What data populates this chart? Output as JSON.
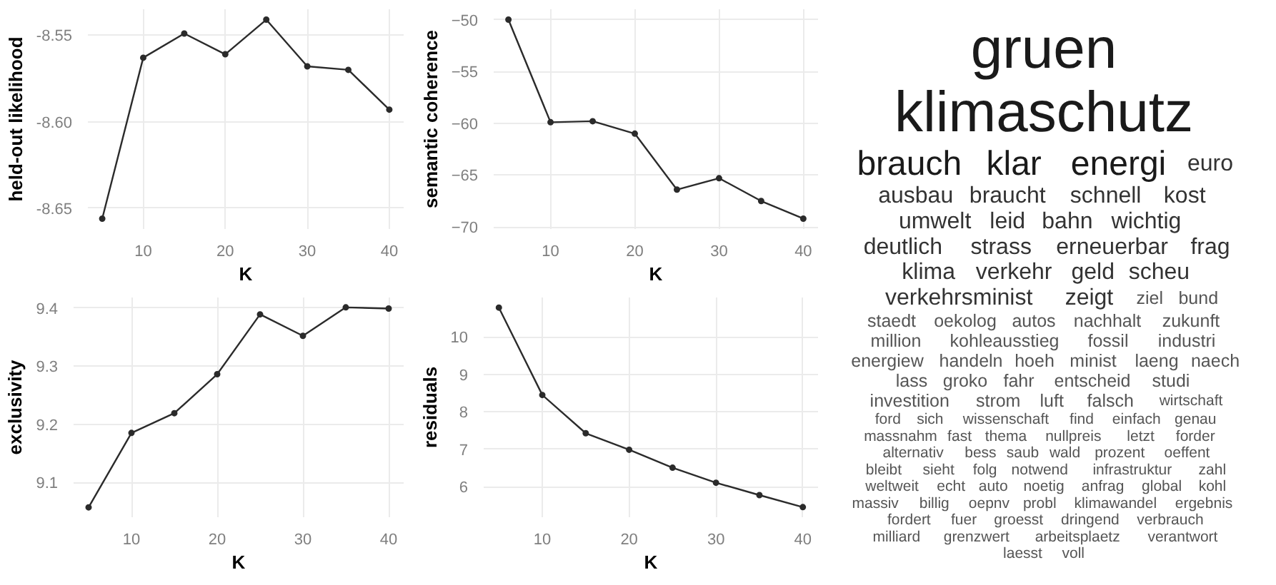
{
  "chart_data": [
    {
      "type": "line",
      "xlabel": "K",
      "ylabel": "held-out likelihood",
      "x": [
        5,
        10,
        15,
        20,
        25,
        30,
        35,
        40
      ],
      "series": [
        {
          "color": "#2b2b2b",
          "values": [
            -8.656,
            -8.563,
            -8.549,
            -8.561,
            -8.541,
            -8.568,
            -8.57,
            -8.593
          ]
        }
      ],
      "xlim": [
        3.25,
        41.75
      ],
      "ylim": [
        -8.662,
        -8.535
      ],
      "xticks": [
        10,
        20,
        30,
        40
      ],
      "yticks": [
        {
          "value": -8.65,
          "label": "-8.65"
        },
        {
          "value": -8.6,
          "label": "-8.60"
        },
        {
          "value": -8.55,
          "label": "-8.55"
        }
      ],
      "grid": true,
      "marker": "circle"
    },
    {
      "type": "line",
      "xlabel": "K",
      "ylabel": "semantic coherence",
      "x": [
        5,
        10,
        15,
        20,
        25,
        30,
        35,
        40
      ],
      "series": [
        {
          "color": "#2b2b2b",
          "values": [
            -50.0,
            -59.9,
            -59.8,
            -61.0,
            -66.4,
            -65.3,
            -67.5,
            -69.2
          ]
        }
      ],
      "xlim": [
        3.25,
        41.75
      ],
      "ylim": [
        -70.2,
        -49.0
      ],
      "xticks": [
        10,
        20,
        30,
        40
      ],
      "yticks": [
        -70,
        -65,
        -60,
        -55,
        -50
      ],
      "grid": true,
      "marker": "circle"
    },
    {
      "type": "line",
      "xlabel": "K",
      "ylabel": "exclusivity",
      "x": [
        5,
        10,
        15,
        20,
        25,
        30,
        35,
        40
      ],
      "series": [
        {
          "color": "#2b2b2b",
          "values": [
            9.057,
            9.185,
            9.219,
            9.286,
            9.389,
            9.352,
            9.401,
            9.399
          ]
        }
      ],
      "xlim": [
        3.25,
        41.75
      ],
      "ylim": [
        9.04,
        9.418
      ],
      "xticks": [
        10,
        20,
        30,
        40
      ],
      "yticks": [
        9.1,
        9.2,
        9.3,
        9.4
      ],
      "grid": true,
      "marker": "circle"
    },
    {
      "type": "line",
      "xlabel": "K",
      "ylabel": "residuals",
      "x": [
        5,
        10,
        15,
        20,
        25,
        30,
        35,
        40
      ],
      "series": [
        {
          "color": "#2b2b2b",
          "values": [
            10.78,
            8.45,
            7.43,
            6.99,
            6.51,
            6.11,
            5.78,
            5.46
          ]
        }
      ],
      "xlim": [
        3.25,
        41.75
      ],
      "ylim": [
        5.19,
        11.05
      ],
      "xticks": [
        10,
        20,
        30,
        40
      ],
      "yticks": [
        6,
        7,
        8,
        9,
        10
      ],
      "grid": true,
      "marker": "circle"
    },
    {
      "type": "other",
      "annotations": [
        "gruen",
        "klimaschutz",
        "brauch",
        "klar",
        "energi",
        "euro",
        "ausbau",
        "braucht",
        "schnell",
        "kost",
        "umwelt",
        "leid",
        "bahn",
        "wichtig",
        "deutlich",
        "strass",
        "erneuerbar",
        "frag",
        "klima",
        "verkehr",
        "geld",
        "scheu",
        "verkehrsminist",
        "zeigt",
        "ziel",
        "bund",
        "staedt",
        "oekolog",
        "autos",
        "nachhalt",
        "zukunft",
        "million",
        "kohleausstieg",
        "fossil",
        "industri",
        "energiew",
        "handeln",
        "hoeh",
        "minist",
        "laeng",
        "naech",
        "lass",
        "groko",
        "fahr",
        "entscheid",
        "studi",
        "investition",
        "strom",
        "luft",
        "falsch",
        "wirtschaft",
        "ford",
        "sich",
        "wissenschaft",
        "find",
        "einfach",
        "genau",
        "massnahm",
        "fast",
        "thema",
        "nullpreis",
        "letzt",
        "forder",
        "alternativ",
        "bess",
        "saub",
        "wald",
        "prozent",
        "oeffent",
        "bleibt",
        "sieht",
        "folg",
        "notwend",
        "infrastruktur",
        "zahl",
        "weltweit",
        "echt",
        "auto",
        "noetig",
        "anfrag",
        "global",
        "kohl",
        "massiv",
        "billig",
        "oepnv",
        "probl",
        "klimawandel",
        "ergebnis",
        "fordert",
        "fuer",
        "groesst",
        "dringend",
        "verbrauch",
        "milliard",
        "grenzwert",
        "arbeitsplaetz",
        "verantwort",
        "laesst",
        "voll"
      ]
    }
  ]
}
